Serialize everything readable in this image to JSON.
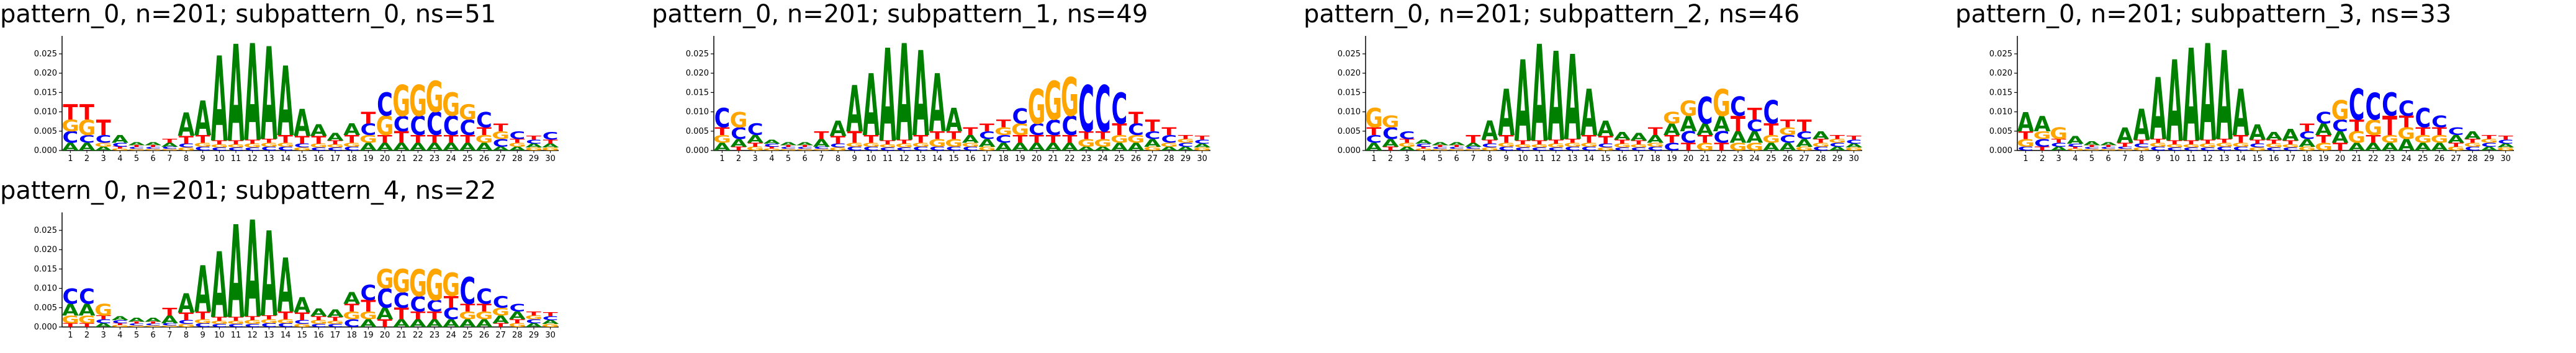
{
  "colors": {
    "A": "#008000",
    "C": "#0000ff",
    "G": "#ffa500",
    "T": "#ff0000",
    "axis": "#000000"
  },
  "y_ticks": [
    "0.000",
    "0.005",
    "0.010",
    "0.015",
    "0.020",
    "0.025"
  ],
  "chart_data": [
    {
      "type": "sequence-logo",
      "title": "pattern_0, n=201; subpattern_0, ns=51",
      "ylim": [
        0,
        0.029
      ],
      "x": [
        1,
        2,
        3,
        4,
        5,
        6,
        7,
        8,
        9,
        10,
        11,
        12,
        13,
        14,
        15,
        16,
        17,
        18,
        19,
        20,
        21,
        22,
        23,
        24,
        25,
        26,
        27,
        28,
        29,
        30
      ],
      "positions": [
        {
          "A": 0.002,
          "C": 0.003,
          "G": 0.003,
          "T": 0.004
        },
        {
          "A": 0.002,
          "C": 0.002,
          "G": 0.004,
          "T": 0.004
        },
        {
          "A": 0.001,
          "C": 0.002,
          "G": 0.001,
          "T": 0.004
        },
        {
          "A": 0.002,
          "C": 0.001,
          "G": 0.0005,
          "T": 0.0005
        },
        {
          "A": 0.0008,
          "C": 0.0005,
          "G": 0.0004,
          "T": 0.0005
        },
        {
          "A": 0.0008,
          "C": 0.0005,
          "G": 0.0004,
          "T": 0.0005
        },
        {
          "A": 0.001,
          "C": 0.0006,
          "G": 0.0004,
          "T": 0.001
        },
        {
          "A": 0.006,
          "C": 0.001,
          "G": 0.0008,
          "T": 0.002
        },
        {
          "A": 0.009,
          "C": 0.001,
          "G": 0.001,
          "T": 0.002
        },
        {
          "A": 0.022,
          "C": 0.0008,
          "G": 0.0008,
          "T": 0.001
        },
        {
          "A": 0.025,
          "C": 0.0008,
          "G": 0.0008,
          "T": 0.001
        },
        {
          "A": 0.025,
          "C": 0.0008,
          "G": 0.001,
          "T": 0.001
        },
        {
          "A": 0.024,
          "C": 0.001,
          "G": 0.001,
          "T": 0.001
        },
        {
          "A": 0.018,
          "C": 0.001,
          "G": 0.001,
          "T": 0.002
        },
        {
          "A": 0.007,
          "C": 0.001,
          "G": 0.0008,
          "T": 0.002
        },
        {
          "A": 0.003,
          "C": 0.0008,
          "G": 0.001,
          "T": 0.002
        },
        {
          "A": 0.002,
          "C": 0.0008,
          "G": 0.0008,
          "T": 0.001
        },
        {
          "A": 0.003,
          "C": 0.001,
          "G": 0.001,
          "T": 0.002
        },
        {
          "A": 0.002,
          "C": 0.003,
          "G": 0.002,
          "T": 0.003
        },
        {
          "A": 0.002,
          "C": 0.006,
          "G": 0.005,
          "T": 0.002
        },
        {
          "A": 0.002,
          "C": 0.004,
          "G": 0.008,
          "T": 0.003
        },
        {
          "A": 0.002,
          "C": 0.005,
          "G": 0.008,
          "T": 0.002
        },
        {
          "A": 0.002,
          "C": 0.006,
          "G": 0.008,
          "T": 0.002
        },
        {
          "A": 0.002,
          "C": 0.005,
          "G": 0.006,
          "T": 0.002
        },
        {
          "A": 0.002,
          "C": 0.004,
          "G": 0.004,
          "T": 0.002
        },
        {
          "A": 0.002,
          "C": 0.004,
          "G": 0.002,
          "T": 0.002
        },
        {
          "A": 0.001,
          "C": 0.002,
          "G": 0.002,
          "T": 0.002
        },
        {
          "A": 0.001,
          "C": 0.002,
          "G": 0.001,
          "T": 0.001
        },
        {
          "A": 0.001,
          "C": 0.001,
          "G": 0.0008,
          "T": 0.001
        },
        {
          "A": 0.001,
          "C": 0.002,
          "G": 0.0008,
          "T": 0.001
        }
      ]
    },
    {
      "type": "sequence-logo",
      "title": "pattern_0, n=201; subpattern_1, ns=49",
      "ylim": [
        0,
        0.029
      ],
      "x": [
        1,
        2,
        3,
        4,
        5,
        6,
        7,
        8,
        9,
        10,
        11,
        12,
        13,
        14,
        15,
        16,
        17,
        18,
        19,
        20,
        21,
        22,
        23,
        24,
        25,
        26,
        27,
        28,
        29,
        30
      ],
      "positions": [
        {
          "A": 0.002,
          "C": 0.005,
          "G": 0.002,
          "T": 0.002
        },
        {
          "A": 0.002,
          "C": 0.003,
          "G": 0.004,
          "T": 0.001
        },
        {
          "A": 0.002,
          "C": 0.003,
          "G": 0.001,
          "T": 0.001
        },
        {
          "A": 0.001,
          "C": 0.0008,
          "G": 0.0005,
          "T": 0.0005
        },
        {
          "A": 0.0008,
          "C": 0.0005,
          "G": 0.0004,
          "T": 0.0005
        },
        {
          "A": 0.0008,
          "C": 0.0005,
          "G": 0.0004,
          "T": 0.0005
        },
        {
          "A": 0.002,
          "C": 0.0006,
          "G": 0.0004,
          "T": 0.002
        },
        {
          "A": 0.004,
          "C": 0.001,
          "G": 0.0008,
          "T": 0.002
        },
        {
          "A": 0.012,
          "C": 0.001,
          "G": 0.001,
          "T": 0.003
        },
        {
          "A": 0.016,
          "C": 0.001,
          "G": 0.001,
          "T": 0.002
        },
        {
          "A": 0.024,
          "C": 0.0008,
          "G": 0.0008,
          "T": 0.001
        },
        {
          "A": 0.025,
          "C": 0.0008,
          "G": 0.001,
          "T": 0.001
        },
        {
          "A": 0.022,
          "C": 0.001,
          "G": 0.001,
          "T": 0.002
        },
        {
          "A": 0.015,
          "C": 0.001,
          "G": 0.002,
          "T": 0.002
        },
        {
          "A": 0.006,
          "C": 0.001,
          "G": 0.002,
          "T": 0.002
        },
        {
          "A": 0.002,
          "C": 0.001,
          "G": 0.001,
          "T": 0.002
        },
        {
          "A": 0.002,
          "C": 0.002,
          "G": 0.001,
          "T": 0.002
        },
        {
          "A": 0.002,
          "C": 0.002,
          "G": 0.002,
          "T": 0.002
        },
        {
          "A": 0.002,
          "C": 0.004,
          "G": 0.003,
          "T": 0.002
        },
        {
          "A": 0.002,
          "C": 0.003,
          "G": 0.009,
          "T": 0.002
        },
        {
          "A": 0.002,
          "C": 0.004,
          "G": 0.01,
          "T": 0.002
        },
        {
          "A": 0.002,
          "C": 0.005,
          "G": 0.01,
          "T": 0.002
        },
        {
          "A": 0.001,
          "C": 0.012,
          "G": 0.002,
          "T": 0.002
        },
        {
          "A": 0.001,
          "C": 0.012,
          "G": 0.002,
          "T": 0.002
        },
        {
          "A": 0.002,
          "C": 0.008,
          "G": 0.002,
          "T": 0.003
        },
        {
          "A": 0.002,
          "C": 0.003,
          "G": 0.002,
          "T": 0.003
        },
        {
          "A": 0.002,
          "C": 0.002,
          "G": 0.001,
          "T": 0.003
        },
        {
          "A": 0.001,
          "C": 0.002,
          "G": 0.001,
          "T": 0.002
        },
        {
          "A": 0.001,
          "C": 0.001,
          "G": 0.001,
          "T": 0.001
        },
        {
          "A": 0.001,
          "C": 0.001,
          "G": 0.0008,
          "T": 0.001
        }
      ]
    },
    {
      "type": "sequence-logo",
      "title": "pattern_0, n=201; subpattern_2, ns=46",
      "ylim": [
        0,
        0.029
      ],
      "x": [
        1,
        2,
        3,
        4,
        5,
        6,
        7,
        8,
        9,
        10,
        11,
        12,
        13,
        14,
        15,
        16,
        17,
        18,
        19,
        20,
        21,
        22,
        23,
        24,
        25,
        26,
        27,
        28,
        29,
        30
      ],
      "positions": [
        {
          "A": 0.002,
          "C": 0.002,
          "G": 0.005,
          "T": 0.002
        },
        {
          "A": 0.002,
          "C": 0.003,
          "G": 0.003,
          "T": 0.001
        },
        {
          "A": 0.001,
          "C": 0.002,
          "G": 0.001,
          "T": 0.001
        },
        {
          "A": 0.001,
          "C": 0.0008,
          "G": 0.0005,
          "T": 0.0005
        },
        {
          "A": 0.0008,
          "C": 0.0005,
          "G": 0.0004,
          "T": 0.0005
        },
        {
          "A": 0.0008,
          "C": 0.0005,
          "G": 0.0004,
          "T": 0.0005
        },
        {
          "A": 0.001,
          "C": 0.0006,
          "G": 0.0004,
          "T": 0.002
        },
        {
          "A": 0.005,
          "C": 0.001,
          "G": 0.0008,
          "T": 0.001
        },
        {
          "A": 0.012,
          "C": 0.001,
          "G": 0.001,
          "T": 0.002
        },
        {
          "A": 0.021,
          "C": 0.0008,
          "G": 0.0008,
          "T": 0.001
        },
        {
          "A": 0.025,
          "C": 0.0008,
          "G": 0.0008,
          "T": 0.001
        },
        {
          "A": 0.023,
          "C": 0.0008,
          "G": 0.001,
          "T": 0.001
        },
        {
          "A": 0.022,
          "C": 0.001,
          "G": 0.001,
          "T": 0.001
        },
        {
          "A": 0.012,
          "C": 0.001,
          "G": 0.001,
          "T": 0.002
        },
        {
          "A": 0.004,
          "C": 0.001,
          "G": 0.0008,
          "T": 0.002
        },
        {
          "A": 0.002,
          "C": 0.0008,
          "G": 0.001,
          "T": 0.001
        },
        {
          "A": 0.002,
          "C": 0.0008,
          "G": 0.0008,
          "T": 0.001
        },
        {
          "A": 0.002,
          "C": 0.001,
          "G": 0.001,
          "T": 0.002
        },
        {
          "A": 0.003,
          "C": 0.002,
          "G": 0.003,
          "T": 0.002
        },
        {
          "A": 0.004,
          "C": 0.003,
          "G": 0.004,
          "T": 0.002
        },
        {
          "A": 0.003,
          "C": 0.007,
          "G": 0.002,
          "T": 0.002
        },
        {
          "A": 0.004,
          "C": 0.003,
          "G": 0.007,
          "T": 0.002
        },
        {
          "A": 0.003,
          "C": 0.005,
          "G": 0.002,
          "T": 0.004
        },
        {
          "A": 0.003,
          "C": 0.003,
          "G": 0.002,
          "T": 0.003
        },
        {
          "A": 0.002,
          "C": 0.006,
          "G": 0.002,
          "T": 0.003
        },
        {
          "A": 0.002,
          "C": 0.002,
          "G": 0.002,
          "T": 0.002
        },
        {
          "A": 0.002,
          "C": 0.002,
          "G": 0.001,
          "T": 0.003
        },
        {
          "A": 0.002,
          "C": 0.001,
          "G": 0.001,
          "T": 0.001
        },
        {
          "A": 0.001,
          "C": 0.001,
          "G": 0.001,
          "T": 0.001
        },
        {
          "A": 0.001,
          "C": 0.001,
          "G": 0.0008,
          "T": 0.001
        }
      ]
    },
    {
      "type": "sequence-logo",
      "title": "pattern_0, n=201; subpattern_3, ns=33",
      "ylim": [
        0,
        0.029
      ],
      "x": [
        1,
        2,
        3,
        4,
        5,
        6,
        7,
        8,
        9,
        10,
        11,
        12,
        13,
        14,
        15,
        16,
        17,
        18,
        19,
        20,
        21,
        22,
        23,
        24,
        25,
        26,
        27,
        28,
        29,
        30
      ],
      "positions": [
        {
          "A": 0.005,
          "C": 0.001,
          "G": 0.002,
          "T": 0.002
        },
        {
          "A": 0.004,
          "C": 0.002,
          "G": 0.002,
          "T": 0.001
        },
        {
          "A": 0.001,
          "C": 0.001,
          "G": 0.003,
          "T": 0.001
        },
        {
          "A": 0.002,
          "C": 0.0008,
          "G": 0.0005,
          "T": 0.0005
        },
        {
          "A": 0.001,
          "C": 0.0005,
          "G": 0.0004,
          "T": 0.0005
        },
        {
          "A": 0.0008,
          "C": 0.0005,
          "G": 0.0004,
          "T": 0.0005
        },
        {
          "A": 0.004,
          "C": 0.0006,
          "G": 0.0004,
          "T": 0.001
        },
        {
          "A": 0.008,
          "C": 0.001,
          "G": 0.0008,
          "T": 0.001
        },
        {
          "A": 0.016,
          "C": 0.001,
          "G": 0.001,
          "T": 0.001
        },
        {
          "A": 0.021,
          "C": 0.0008,
          "G": 0.0008,
          "T": 0.001
        },
        {
          "A": 0.024,
          "C": 0.0008,
          "G": 0.0008,
          "T": 0.001
        },
        {
          "A": 0.025,
          "C": 0.0008,
          "G": 0.001,
          "T": 0.001
        },
        {
          "A": 0.023,
          "C": 0.001,
          "G": 0.001,
          "T": 0.001
        },
        {
          "A": 0.012,
          "C": 0.001,
          "G": 0.001,
          "T": 0.002
        },
        {
          "A": 0.004,
          "C": 0.001,
          "G": 0.0008,
          "T": 0.001
        },
        {
          "A": 0.002,
          "C": 0.0008,
          "G": 0.001,
          "T": 0.001
        },
        {
          "A": 0.003,
          "C": 0.0008,
          "G": 0.0008,
          "T": 0.001
        },
        {
          "A": 0.002,
          "C": 0.002,
          "G": 0.001,
          "T": 0.002
        },
        {
          "A": 0.003,
          "C": 0.003,
          "G": 0.002,
          "T": 0.002
        },
        {
          "A": 0.003,
          "C": 0.003,
          "G": 0.005,
          "T": 0.002
        },
        {
          "A": 0.002,
          "C": 0.008,
          "G": 0.003,
          "T": 0.003
        },
        {
          "A": 0.002,
          "C": 0.007,
          "G": 0.004,
          "T": 0.002
        },
        {
          "A": 0.002,
          "C": 0.006,
          "G": 0.002,
          "T": 0.005
        },
        {
          "A": 0.003,
          "C": 0.004,
          "G": 0.003,
          "T": 0.003
        },
        {
          "A": 0.002,
          "C": 0.005,
          "G": 0.002,
          "T": 0.002
        },
        {
          "A": 0.002,
          "C": 0.003,
          "G": 0.002,
          "T": 0.002
        },
        {
          "A": 0.002,
          "C": 0.002,
          "G": 0.001,
          "T": 0.001
        },
        {
          "A": 0.002,
          "C": 0.001,
          "G": 0.001,
          "T": 0.001
        },
        {
          "A": 0.001,
          "C": 0.001,
          "G": 0.001,
          "T": 0.001
        },
        {
          "A": 0.001,
          "C": 0.001,
          "G": 0.0008,
          "T": 0.001
        }
      ]
    },
    {
      "type": "sequence-logo",
      "title": "pattern_0, n=201; subpattern_4, ns=22",
      "ylim": [
        0,
        0.029
      ],
      "x": [
        1,
        2,
        3,
        4,
        5,
        6,
        7,
        8,
        9,
        10,
        11,
        12,
        13,
        14,
        15,
        16,
        17,
        18,
        19,
        20,
        21,
        22,
        23,
        24,
        25,
        26,
        27,
        28,
        29,
        30
      ],
      "positions": [
        {
          "A": 0.003,
          "C": 0.004,
          "G": 0.002,
          "T": 0.001
        },
        {
          "A": 0.003,
          "C": 0.004,
          "G": 0.002,
          "T": 0.001
        },
        {
          "A": 0.001,
          "C": 0.001,
          "G": 0.003,
          "T": 0.001
        },
        {
          "A": 0.001,
          "C": 0.0008,
          "G": 0.0005,
          "T": 0.0005
        },
        {
          "A": 0.001,
          "C": 0.0005,
          "G": 0.0004,
          "T": 0.0005
        },
        {
          "A": 0.001,
          "C": 0.0005,
          "G": 0.0004,
          "T": 0.0005
        },
        {
          "A": 0.002,
          "C": 0.0006,
          "G": 0.0004,
          "T": 0.002
        },
        {
          "A": 0.005,
          "C": 0.001,
          "G": 0.0008,
          "T": 0.002
        },
        {
          "A": 0.012,
          "C": 0.001,
          "G": 0.001,
          "T": 0.002
        },
        {
          "A": 0.017,
          "C": 0.0008,
          "G": 0.0008,
          "T": 0.001
        },
        {
          "A": 0.024,
          "C": 0.0008,
          "G": 0.0008,
          "T": 0.001
        },
        {
          "A": 0.025,
          "C": 0.0008,
          "G": 0.001,
          "T": 0.001
        },
        {
          "A": 0.022,
          "C": 0.001,
          "G": 0.001,
          "T": 0.001
        },
        {
          "A": 0.014,
          "C": 0.001,
          "G": 0.001,
          "T": 0.002
        },
        {
          "A": 0.004,
          "C": 0.001,
          "G": 0.0008,
          "T": 0.002
        },
        {
          "A": 0.002,
          "C": 0.0008,
          "G": 0.001,
          "T": 0.001
        },
        {
          "A": 0.002,
          "C": 0.0008,
          "G": 0.0008,
          "T": 0.001
        },
        {
          "A": 0.003,
          "C": 0.002,
          "G": 0.002,
          "T": 0.002
        },
        {
          "A": 0.002,
          "C": 0.004,
          "G": 0.002,
          "T": 0.003
        },
        {
          "A": 0.003,
          "C": 0.005,
          "G": 0.005,
          "T": 0.002
        },
        {
          "A": 0.002,
          "C": 0.004,
          "G": 0.006,
          "T": 0.003
        },
        {
          "A": 0.002,
          "C": 0.004,
          "G": 0.007,
          "T": 0.002
        },
        {
          "A": 0.002,
          "C": 0.003,
          "G": 0.008,
          "T": 0.002
        },
        {
          "A": 0.002,
          "C": 0.003,
          "G": 0.006,
          "T": 0.003
        },
        {
          "A": 0.002,
          "C": 0.007,
          "G": 0.002,
          "T": 0.002
        },
        {
          "A": 0.002,
          "C": 0.004,
          "G": 0.002,
          "T": 0.002
        },
        {
          "A": 0.002,
          "C": 0.003,
          "G": 0.002,
          "T": 0.001
        },
        {
          "A": 0.002,
          "C": 0.002,
          "G": 0.001,
          "T": 0.001
        },
        {
          "A": 0.001,
          "C": 0.001,
          "G": 0.001,
          "T": 0.001
        },
        {
          "A": 0.001,
          "C": 0.001,
          "G": 0.0008,
          "T": 0.001
        }
      ]
    }
  ]
}
